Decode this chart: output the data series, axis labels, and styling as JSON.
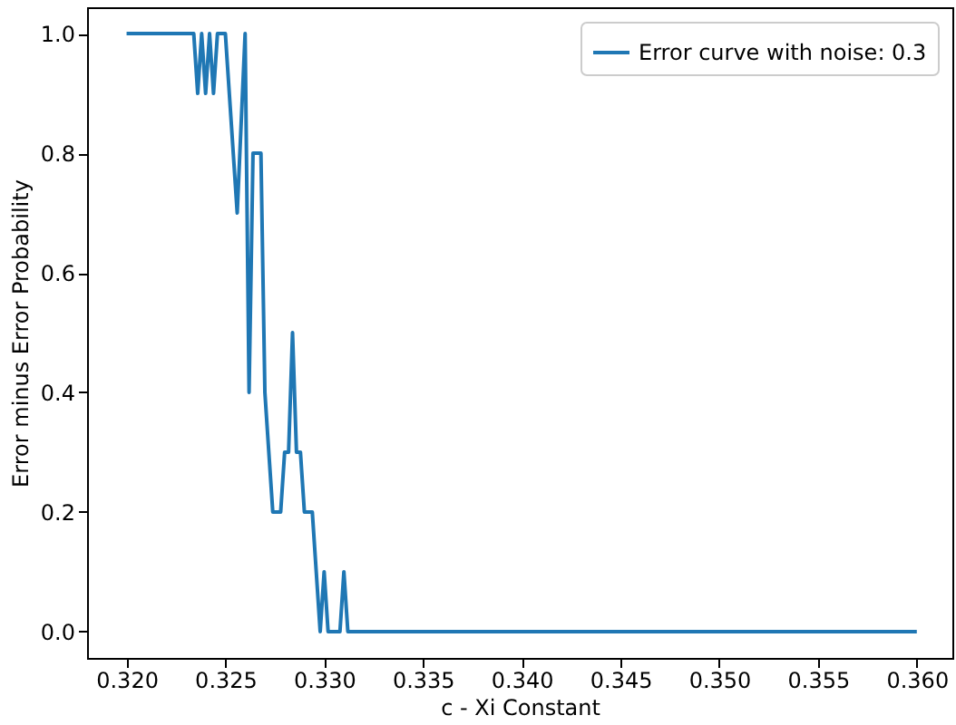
{
  "chart_data": {
    "type": "line",
    "xlabel": "c - Xi Constant",
    "ylabel": "Error minus Error Probability",
    "xlim": [
      0.318,
      0.3618
    ],
    "ylim": [
      -0.044,
      1.044
    ],
    "xticks": [
      {
        "value": 0.32,
        "label": "0.320"
      },
      0.325,
      {
        "value": 0.33,
        "label": "0.330"
      },
      0.335,
      {
        "value": 0.34,
        "label": "0.340"
      },
      0.345,
      {
        "value": 0.35,
        "label": "0.350"
      },
      0.355,
      {
        "value": 0.36,
        "label": "0.360"
      }
    ],
    "yticks": [
      {
        "value": 0,
        "label": "0.0"
      },
      0.2,
      0.4,
      0.6,
      0.8,
      {
        "value": 1,
        "label": "1.0"
      }
    ],
    "grid": false,
    "legend": "top right",
    "marker": "none",
    "line_style": "solid",
    "series": [
      {
        "name": "Error curve with noise: 0.3",
        "color": "#1f77b4",
        "x": [
          0.32,
          0.3234,
          0.3236,
          0.3238,
          0.324,
          0.3242,
          0.3244,
          0.3246,
          0.325,
          0.3256,
          0.326,
          0.3262,
          0.3264,
          0.3268,
          0.327,
          0.3274,
          0.3278,
          0.328,
          0.3282,
          0.3284,
          0.3286,
          0.3288,
          0.329,
          0.3294,
          0.3298,
          0.33,
          0.3302,
          0.3308,
          0.331,
          0.3312,
          0.36
        ],
        "values": [
          1,
          1,
          0.9,
          1,
          0.9,
          1,
          0.9,
          1,
          1,
          0.7,
          1,
          0.4,
          0.8,
          0.8,
          0.4,
          0.2,
          0.2,
          0.3,
          0.3,
          0.5,
          0.3,
          0.3,
          0.2,
          0.2,
          0,
          0.1,
          0,
          0,
          0.1,
          0,
          0
        ]
      }
    ]
  }
}
